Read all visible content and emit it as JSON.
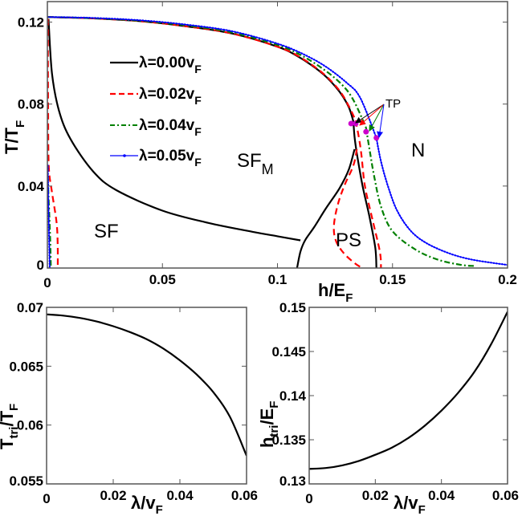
{
  "chart_data": [
    {
      "type": "line",
      "title": "",
      "xlabel": "h/E",
      "xlabel_sub": "F",
      "ylabel": "T/T",
      "ylabel_sub": "F",
      "xlim": [
        0,
        0.2
      ],
      "ylim": [
        0,
        0.13
      ],
      "xticks": [
        0,
        0.05,
        0.1,
        0.15,
        0.2
      ],
      "xtick_labels": [
        "0",
        "0.05",
        "0.1",
        "0.15",
        "0.2"
      ],
      "yticks": [
        0,
        0.04,
        0.08,
        0.12
      ],
      "ytick_labels": [
        "0",
        "0.04",
        "0.08",
        "0.12"
      ],
      "grid": false,
      "legend_position": "upper-left-center",
      "legend": [
        {
          "label": "λ=0.00v",
          "sub": "F",
          "color": "#000000",
          "style": "solid"
        },
        {
          "label": "λ=0.02v",
          "sub": "F",
          "color": "#ff0000",
          "style": "dashed"
        },
        {
          "label": "λ=0.04v",
          "sub": "F",
          "color": "#008000",
          "style": "dashdot"
        },
        {
          "label": "λ=0.05v",
          "sub": "F",
          "color": "#0000ff",
          "style": "solid-dots"
        }
      ],
      "regions": [
        {
          "label": "SF",
          "x": 0.017,
          "y": 0.017
        },
        {
          "label": "SF",
          "sub": "M",
          "x": 0.084,
          "y": 0.05
        },
        {
          "label": "PS",
          "x": 0.122,
          "y": 0.009
        },
        {
          "label": "N",
          "x": 0.17,
          "y": 0.055
        }
      ],
      "annotation": {
        "label": "TP",
        "x": 0.153,
        "y": 0.078
      },
      "series": [
        {
          "name": "λ=0.00v_F upper boundary",
          "color": "#000000",
          "style": "solid",
          "x": [
            0,
            0.02,
            0.04,
            0.06,
            0.08,
            0.1,
            0.11,
            0.12,
            0.127,
            0.131,
            0.133
          ],
          "y": [
            0.1225,
            0.1218,
            0.1205,
            0.118,
            0.1145,
            0.108,
            0.1025,
            0.0945,
            0.086,
            0.0785,
            0.0715
          ]
        },
        {
          "name": "λ=0.00v_F SF-SFM boundary",
          "color": "#000000",
          "style": "solid",
          "x": [
            0.0005,
            0.002,
            0.005,
            0.01,
            0.02,
            0.03,
            0.05,
            0.07,
            0.09,
            0.1,
            0.11
          ],
          "y": [
            0.1215,
            0.095,
            0.077,
            0.063,
            0.047,
            0.038,
            0.028,
            0.022,
            0.0175,
            0.0155,
            0.0135
          ]
        },
        {
          "name": "λ=0.00v_F PS left boundary",
          "color": "#000000",
          "style": "solid",
          "x": [
            0.1085,
            0.11,
            0.112,
            0.116,
            0.121,
            0.127,
            0.131,
            0.1335
          ],
          "y": [
            0,
            0.008,
            0.0135,
            0.02,
            0.029,
            0.039,
            0.048,
            0.058
          ]
        },
        {
          "name": "λ=0.00v_F PS right boundary",
          "color": "#000000",
          "style": "solid",
          "x": [
            0.133,
            0.1335,
            0.1345,
            0.137,
            0.14,
            0.1425,
            0.143
          ],
          "y": [
            0.0715,
            0.064,
            0.056,
            0.04,
            0.025,
            0.01,
            0
          ]
        },
        {
          "name": "λ=0.02v_F upper boundary",
          "color": "#ff0000",
          "style": "dashed",
          "x": [
            0,
            0.02,
            0.04,
            0.06,
            0.08,
            0.1,
            0.11,
            0.12,
            0.127,
            0.131,
            0.134
          ],
          "y": [
            0.1225,
            0.1218,
            0.1205,
            0.118,
            0.1145,
            0.108,
            0.1028,
            0.0948,
            0.0865,
            0.079,
            0.072
          ]
        },
        {
          "name": "λ=0.02v_F PS loop",
          "color": "#ff0000",
          "style": "dashed",
          "x": [
            0.134,
            0.1355,
            0.1365,
            0.138,
            0.141,
            0.1445,
            0.145
          ],
          "y": [
            0.072,
            0.063,
            0.055,
            0.04,
            0.025,
            0.008,
            0
          ]
        },
        {
          "name": "λ=0.02v_F PS inner",
          "color": "#ff0000",
          "style": "dashed",
          "x": [
            0.1345,
            0.133,
            0.129,
            0.126,
            0.1245,
            0.1255,
            0.129,
            0.134,
            0.137
          ],
          "y": [
            0.058,
            0.05,
            0.04,
            0.03,
            0.02,
            0.013,
            0.007,
            0.002,
            0
          ]
        },
        {
          "name": "λ=0.02v_F low-h boundary",
          "color": "#ff0000",
          "style": "dashed",
          "x": [
            0.0002,
            0.0003,
            0.0006,
            0.002,
            0.004,
            0.0045,
            0.0045
          ],
          "y": [
            0.1215,
            0.08,
            0.05,
            0.037,
            0.022,
            0.01,
            0
          ]
        },
        {
          "name": "λ=0.04v_F upper boundary",
          "color": "#008000",
          "style": "dashdot",
          "x": [
            0,
            0.02,
            0.04,
            0.06,
            0.08,
            0.1,
            0.11,
            0.12,
            0.128,
            0.133,
            0.1385
          ],
          "y": [
            0.1225,
            0.1219,
            0.1207,
            0.1184,
            0.115,
            0.1088,
            0.104,
            0.097,
            0.0895,
            0.082,
            0.0685
          ]
        },
        {
          "name": "λ=0.04v_F lower branch",
          "color": "#008000",
          "style": "dashdot",
          "x": [
            0.1385,
            0.14,
            0.142,
            0.145,
            0.15,
            0.16,
            0.17,
            0.18,
            0.1855
          ],
          "y": [
            0.0685,
            0.058,
            0.045,
            0.03,
            0.018,
            0.009,
            0.004,
            0.0015,
            0.001
          ]
        },
        {
          "name": "λ=0.04v_F low-h boundary",
          "color": "#008000",
          "style": "dashdot",
          "x": [
            0.0002,
            0.0005,
            0.0012,
            0.0015
          ],
          "y": [
            0.045,
            0.035,
            0.015,
            0
          ]
        },
        {
          "name": "λ=0.05v_F upper boundary",
          "color": "#0000ff",
          "style": "solid-dots",
          "x": [
            0,
            0.02,
            0.04,
            0.06,
            0.08,
            0.1,
            0.11,
            0.12,
            0.13,
            0.136,
            0.143
          ],
          "y": [
            0.1225,
            0.122,
            0.1209,
            0.1188,
            0.1156,
            0.1095,
            0.105,
            0.099,
            0.0905,
            0.083,
            0.0635
          ]
        },
        {
          "name": "λ=0.05v_F lower branch",
          "color": "#0000ff",
          "style": "solid-dots",
          "x": [
            0.143,
            0.145,
            0.148,
            0.152,
            0.158,
            0.165,
            0.175,
            0.185,
            0.2
          ],
          "y": [
            0.0635,
            0.052,
            0.04,
            0.028,
            0.018,
            0.012,
            0.007,
            0.004,
            0.0015
          ]
        },
        {
          "name": "λ=0.05v_F low-h boundary",
          "color": "#0000ff",
          "style": "solid-dots",
          "x": [
            0.0002,
            0.0004,
            0.0008,
            0.001
          ],
          "y": [
            0.05,
            0.035,
            0.012,
            0
          ]
        }
      ],
      "tricritical_points": [
        {
          "x": 0.132,
          "y": 0.0705,
          "color": "#cc00cc"
        },
        {
          "x": 0.134,
          "y": 0.0705,
          "color": "#cc00cc"
        },
        {
          "x": 0.1385,
          "y": 0.0665,
          "color": "#cc00cc"
        },
        {
          "x": 0.143,
          "y": 0.0635,
          "color": "#cc00cc"
        }
      ]
    },
    {
      "type": "line",
      "title": "",
      "xlabel": "λ/v",
      "xlabel_sub": "F",
      "ylabel": "T",
      "ylabel_sub1": "tri",
      "ylabel_mid": "/T",
      "ylabel_sub2": "F",
      "xlim": [
        0,
        0.06
      ],
      "ylim": [
        0.055,
        0.07
      ],
      "xticks": [
        0,
        0.02,
        0.04,
        0.06
      ],
      "xtick_labels": [
        "0",
        "0.02",
        "0.04",
        "0.06"
      ],
      "yticks": [
        0.055,
        0.06,
        0.065,
        0.07
      ],
      "ytick_labels": [
        "0.055",
        "0.06",
        "0.065",
        "0.07"
      ],
      "grid": false,
      "series": [
        {
          "name": "T_tri",
          "color": "#000000",
          "x": [
            0,
            0.005,
            0.01,
            0.015,
            0.02,
            0.025,
            0.03,
            0.035,
            0.04,
            0.045,
            0.05,
            0.055,
            0.06
          ],
          "y": [
            0.0694,
            0.0693,
            0.0691,
            0.0688,
            0.0684,
            0.0679,
            0.0673,
            0.0665,
            0.0655,
            0.0643,
            0.0628,
            0.0607,
            0.0574
          ]
        }
      ]
    },
    {
      "type": "line",
      "title": "",
      "xlabel": "λ/v",
      "xlabel_sub": "F",
      "ylabel": "h",
      "ylabel_sub1": "tri",
      "ylabel_mid": "/E",
      "ylabel_sub2": "F",
      "xlim": [
        0,
        0.06
      ],
      "ylim": [
        0.13,
        0.15
      ],
      "xticks": [
        0,
        0.02,
        0.04,
        0.06
      ],
      "xtick_labels": [
        "0",
        "0.02",
        "0.04",
        "0.06"
      ],
      "yticks": [
        0.13,
        0.135,
        0.14,
        0.145,
        0.15
      ],
      "ytick_labels": [
        "0.13",
        "0.135",
        "0.14",
        "0.145",
        "0.15"
      ],
      "grid": false,
      "series": [
        {
          "name": "h_tri",
          "color": "#000000",
          "x": [
            0,
            0.005,
            0.01,
            0.015,
            0.02,
            0.025,
            0.03,
            0.035,
            0.04,
            0.045,
            0.05,
            0.055,
            0.06
          ],
          "y": [
            0.1317,
            0.1318,
            0.1321,
            0.1326,
            0.1333,
            0.1341,
            0.1352,
            0.1366,
            0.1383,
            0.1403,
            0.1427,
            0.1458,
            0.1495
          ]
        }
      ]
    }
  ]
}
